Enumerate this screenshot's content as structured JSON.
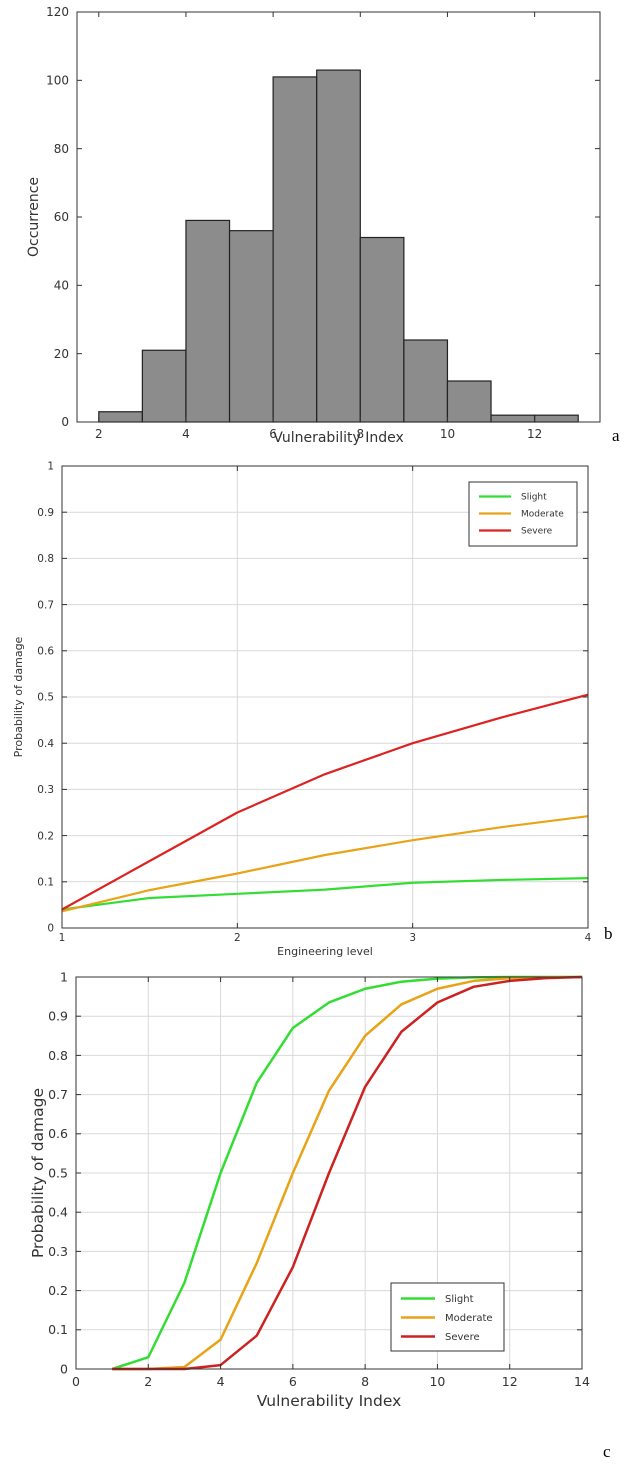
{
  "chart_data": [
    {
      "id": "a",
      "type": "bar",
      "panel_label": "a",
      "title": "",
      "xlabel": "Vulnerability Index",
      "ylabel": "Occurrence",
      "bin_edges": [
        2,
        3,
        4,
        5,
        6,
        7,
        8,
        9,
        10,
        11,
        12,
        13
      ],
      "values": [
        3,
        21,
        59,
        56,
        101,
        103,
        54,
        24,
        12,
        2,
        2
      ],
      "xlim": [
        1.5,
        13.5
      ],
      "ylim": [
        0,
        120
      ],
      "xticks": [
        "2",
        "4",
        "6",
        "8",
        "10",
        "12"
      ],
      "xtick_values": [
        2,
        4,
        6,
        8,
        10,
        12
      ],
      "yticks": [
        "0",
        "20",
        "40",
        "60",
        "80",
        "100",
        "120"
      ],
      "ytick_values": [
        0,
        20,
        40,
        60,
        80,
        100,
        120
      ],
      "bar_color": "#8c8c8c",
      "grid": false
    },
    {
      "id": "b",
      "type": "line",
      "panel_label": "b",
      "title": "",
      "xlabel": "Engineering level",
      "ylabel": "Probability of damage",
      "xlim": [
        1,
        4
      ],
      "ylim": [
        0,
        1
      ],
      "xticks": [
        "1",
        "2",
        "3",
        "4"
      ],
      "xtick_values": [
        1,
        2,
        3,
        4
      ],
      "yticks": [
        "0",
        "0.1",
        "0.2",
        "0.3",
        "0.4",
        "0.5",
        "0.6",
        "0.7",
        "0.8",
        "0.9",
        "1"
      ],
      "ytick_values": [
        0,
        0.1,
        0.2,
        0.3,
        0.4,
        0.5,
        0.6,
        0.7,
        0.8,
        0.9,
        1
      ],
      "grid": true,
      "legend_position": "top-right",
      "x": [
        1,
        1.5,
        2,
        2.5,
        3,
        3.5,
        4
      ],
      "series": [
        {
          "name": "Slight",
          "color": "#33dd33",
          "values": [
            0.04,
            0.065,
            0.074,
            0.083,
            0.098,
            0.104,
            0.108
          ]
        },
        {
          "name": "Moderate",
          "color": "#e8a317",
          "values": [
            0.036,
            0.082,
            0.118,
            0.158,
            0.19,
            0.218,
            0.242
          ]
        },
        {
          "name": "Severe",
          "color": "#dd2222",
          "values": [
            0.04,
            0.145,
            0.25,
            0.333,
            0.4,
            0.455,
            0.505
          ]
        }
      ]
    },
    {
      "id": "c",
      "type": "line",
      "panel_label": "c",
      "title": "",
      "xlabel": "Vulnerability Index",
      "ylabel": "Probability of damage",
      "xlim": [
        0,
        14
      ],
      "ylim": [
        0,
        1
      ],
      "xticks": [
        "0",
        "2",
        "4",
        "6",
        "8",
        "10",
        "12",
        "14"
      ],
      "xtick_values": [
        0,
        2,
        4,
        6,
        8,
        10,
        12,
        14
      ],
      "yticks": [
        "0",
        "0.1",
        "0.2",
        "0.3",
        "0.4",
        "0.5",
        "0.6",
        "0.7",
        "0.8",
        "0.9",
        "1"
      ],
      "ytick_values": [
        0,
        0.1,
        0.2,
        0.3,
        0.4,
        0.5,
        0.6,
        0.7,
        0.8,
        0.9,
        1
      ],
      "grid": true,
      "legend_position": "bottom-right",
      "series": [
        {
          "name": "Slight",
          "color": "#33dd33",
          "x": [
            1,
            2,
            3,
            4,
            5,
            6,
            7,
            8,
            9,
            10,
            11,
            12,
            13,
            14
          ],
          "values": [
            0.0,
            0.03,
            0.22,
            0.5,
            0.73,
            0.87,
            0.935,
            0.97,
            0.988,
            0.996,
            0.999,
            1.0,
            1.0,
            1.0
          ]
        },
        {
          "name": "Moderate",
          "color": "#e8a317",
          "x": [
            1,
            2,
            3,
            4,
            5,
            6,
            7,
            8,
            9,
            10,
            11,
            12,
            13,
            14
          ],
          "values": [
            0.0,
            0.0,
            0.005,
            0.075,
            0.27,
            0.5,
            0.71,
            0.85,
            0.93,
            0.97,
            0.99,
            0.997,
            0.999,
            1.0
          ]
        },
        {
          "name": "Severe",
          "color": "#cc2222",
          "x": [
            1,
            2,
            3,
            4,
            5,
            6,
            7,
            8,
            9,
            10,
            11,
            12,
            13,
            14
          ],
          "values": [
            0.0,
            0.0,
            0.0,
            0.01,
            0.085,
            0.26,
            0.5,
            0.72,
            0.86,
            0.935,
            0.975,
            0.99,
            0.997,
            1.0
          ]
        }
      ]
    }
  ]
}
